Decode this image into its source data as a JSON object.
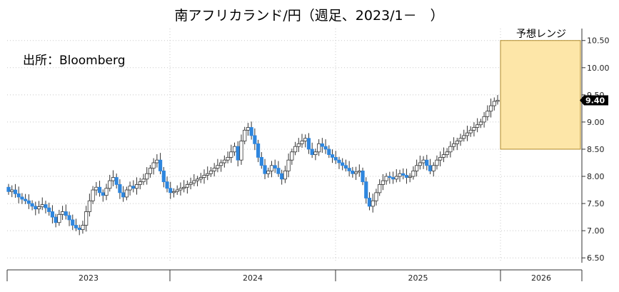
{
  "chart_data": {
    "type": "candlestick",
    "title": "南アフリカランド/円（週足、2023/1－　）",
    "source": "出所：Bloomberg",
    "x_tick_labels": [
      "2023",
      "2024",
      "2025",
      "2026"
    ],
    "y_ticks": [
      6.5,
      7.0,
      7.5,
      8.0,
      8.5,
      9.0,
      9.5,
      10.0,
      10.5
    ],
    "y_tick_labels": [
      "6.50",
      "7.00",
      "7.50",
      "8.00",
      "8.50",
      "9.00",
      "9.50",
      "10.00",
      "10.50"
    ],
    "ylim": [
      6.45,
      10.72
    ],
    "grid": true,
    "last_price": 9.4,
    "last_price_label": "9.40",
    "forecast": {
      "label": "予想レンジ",
      "low": 8.5,
      "high": 10.5
    },
    "up_color": "#ffffff",
    "down_color": "#2e86de",
    "forecast_color": "#fde6a8",
    "forecast_border": "#b08a2a",
    "weekly_close": [
      7.72,
      7.75,
      7.68,
      7.62,
      7.58,
      7.55,
      7.5,
      7.45,
      7.4,
      7.44,
      7.48,
      7.42,
      7.35,
      7.25,
      7.15,
      7.3,
      7.35,
      7.28,
      7.2,
      7.1,
      7.05,
      7.02,
      7.1,
      7.35,
      7.55,
      7.75,
      7.8,
      7.7,
      7.65,
      7.78,
      7.92,
      7.98,
      7.85,
      7.7,
      7.62,
      7.75,
      7.82,
      7.78,
      7.85,
      7.9,
      7.95,
      8.05,
      8.15,
      8.25,
      8.3,
      8.1,
      7.9,
      7.78,
      7.7,
      7.72,
      7.75,
      7.78,
      7.8,
      7.85,
      7.88,
      7.92,
      7.95,
      7.98,
      8.02,
      8.05,
      8.1,
      8.15,
      8.2,
      8.25,
      8.3,
      8.35,
      8.45,
      8.55,
      8.3,
      8.65,
      8.85,
      8.9,
      8.75,
      8.6,
      8.35,
      8.2,
      8.05,
      8.1,
      8.2,
      8.15,
      8.05,
      7.95,
      8.1,
      8.3,
      8.45,
      8.55,
      8.6,
      8.65,
      8.7,
      8.5,
      8.4,
      8.45,
      8.6,
      8.55,
      8.5,
      8.4,
      8.35,
      8.3,
      8.25,
      8.2,
      8.15,
      8.1,
      8.05,
      8.08,
      8.1,
      7.9,
      7.6,
      7.45,
      7.55,
      7.7,
      7.85,
      7.92,
      8.0,
      7.98,
      7.95,
      8.0,
      8.05,
      8.02,
      7.98,
      8.0,
      8.1,
      8.2,
      8.25,
      8.3,
      8.2,
      8.1,
      8.2,
      8.3,
      8.35,
      8.4,
      8.45,
      8.55,
      8.6,
      8.65,
      8.7,
      8.75,
      8.8,
      8.85,
      8.9,
      8.95,
      9.0,
      9.1,
      9.2,
      9.3,
      9.38,
      9.4
    ]
  }
}
